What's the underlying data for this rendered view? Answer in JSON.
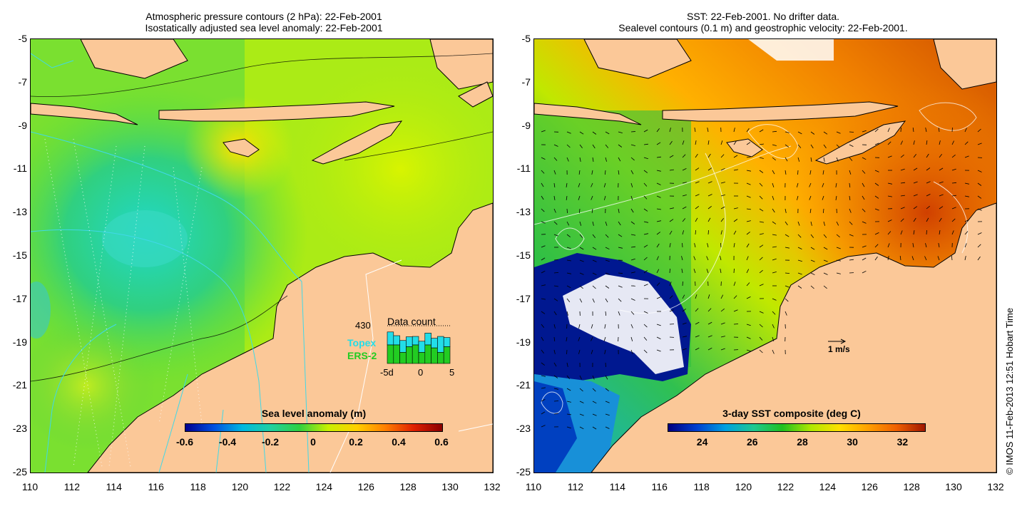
{
  "left_panel": {
    "title_line1": "Atmospheric pressure contours (2 hPa): 22-Feb-2001",
    "title_line2": "Isostatically adjusted sea level anomaly: 22-Feb-2001",
    "y_ticks": [
      "-5",
      "-7",
      "-9",
      "-11",
      "-13",
      "-15",
      "-17",
      "-19",
      "-21",
      "-23",
      "-25"
    ],
    "x_ticks": [
      "110",
      "112",
      "114",
      "116",
      "118",
      "120",
      "122",
      "124",
      "126",
      "128",
      "130",
      "132"
    ],
    "colorbar": {
      "label": "Sea level anomaly (m)",
      "ticks": [
        "-0.6",
        "-0.4",
        "-0.2",
        "0",
        "0.2",
        "0.4",
        "0.6"
      ]
    },
    "inset": {
      "title": "Data count",
      "max_label": "430",
      "series": [
        {
          "name": "Topex",
          "color": "#22dde8"
        },
        {
          "name": "ERS-2",
          "color": "#22cc22"
        }
      ],
      "x_ticks": [
        "-5d",
        "0",
        "5"
      ],
      "bars_total": [
        0.85,
        0.75,
        0.62,
        0.72,
        0.73,
        0.6,
        0.82,
        0.68,
        0.73,
        0.7
      ],
      "bars_ers": [
        0.5,
        0.5,
        0.3,
        0.45,
        0.5,
        0.3,
        0.5,
        0.42,
        0.3,
        0.45
      ]
    }
  },
  "right_panel": {
    "title_line1": "SST: 22-Feb-2001. No drifter data.",
    "title_line2": "Sealevel contours (0.1 m) and geostrophic velocity: 22-Feb-2001.",
    "y_ticks": [
      "-5",
      "-7",
      "-9",
      "-11",
      "-13",
      "-15",
      "-17",
      "-19",
      "-21",
      "-23",
      "-25"
    ],
    "x_ticks": [
      "110",
      "112",
      "114",
      "116",
      "118",
      "120",
      "122",
      "124",
      "126",
      "128",
      "130",
      "132"
    ],
    "colorbar": {
      "label": "3-day SST composite (deg C)",
      "ticks": [
        "24",
        "26",
        "28",
        "30",
        "32"
      ]
    },
    "scale_label": "1 m/s"
  },
  "credit": "© IMOS 11-Feb-2013 12:51 Hobart Time",
  "colors": {
    "land": "#fbc898",
    "sla_ramp": [
      "#000090",
      "#0050e0",
      "#00b8e0",
      "#20d0a0",
      "#30d040",
      "#c8f000",
      "#ffd000",
      "#ff8000",
      "#e02000",
      "#8a0000"
    ],
    "sst_ramp": [
      "#000080",
      "#0040d0",
      "#00a0e0",
      "#20c890",
      "#20c020",
      "#b0e800",
      "#ffe000",
      "#ffa000",
      "#f06000",
      "#a01800"
    ]
  }
}
